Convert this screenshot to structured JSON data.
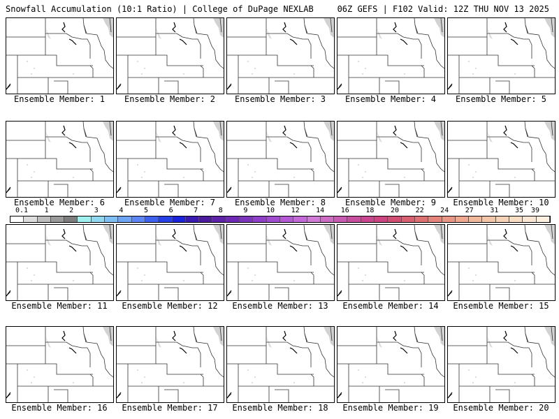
{
  "header": {
    "left": "Snowfall Accumulation (10:1 Ratio) | College of DuPage NEXLAB",
    "right": "06Z GEFS | F102 Valid: 12Z THU NOV 13 2025"
  },
  "panels": [
    {
      "label": "Ensemble Member: 1"
    },
    {
      "label": "Ensemble Member: 2"
    },
    {
      "label": "Ensemble Member: 3"
    },
    {
      "label": "Ensemble Member: 4"
    },
    {
      "label": "Ensemble Member: 5"
    },
    {
      "label": "Ensemble Member: 6"
    },
    {
      "label": "Ensemble Member: 7"
    },
    {
      "label": "Ensemble Member: 8"
    },
    {
      "label": "Ensemble Member: 9"
    },
    {
      "label": "Ensemble Member: 10"
    },
    {
      "label": "Ensemble Member: 11"
    },
    {
      "label": "Ensemble Member: 12"
    },
    {
      "label": "Ensemble Member: 13"
    },
    {
      "label": "Ensemble Member: 14"
    },
    {
      "label": "Ensemble Member: 15"
    },
    {
      "label": "Ensemble Member: 16"
    },
    {
      "label": "Ensemble Member: 17"
    },
    {
      "label": "Ensemble Member: 18"
    },
    {
      "label": "Ensemble Member: 19"
    },
    {
      "label": "Ensemble Member: 20"
    }
  ],
  "colorbar": {
    "labels": [
      "0.1",
      "1",
      "2",
      "3",
      "4",
      "5",
      "6",
      "7",
      "8",
      "9",
      "10",
      "12",
      "14",
      "16",
      "18",
      "20",
      "22",
      "24",
      "27",
      "31",
      "35",
      "39"
    ],
    "colors": [
      "#ffffff",
      "#dcdcdc",
      "#bdbdbd",
      "#9a9a9a",
      "#7d7d7d",
      "#9ff0ee",
      "#8fd8f0",
      "#7ec0f2",
      "#6ea4f4",
      "#5b86f4",
      "#3f62ee",
      "#2440e6",
      "#1a22dc",
      "#3a1ab0",
      "#4d1c9e",
      "#5d22a8",
      "#6e2ab4",
      "#7f34c0",
      "#9040c8",
      "#a24cd0",
      "#b45ad6",
      "#c46ad8",
      "#d07cd6",
      "#cc6cc4",
      "#c85cb2",
      "#c84ea0",
      "#ca468e",
      "#cc4480",
      "#d24e74",
      "#d86070",
      "#de7272",
      "#e4847a",
      "#ea9684",
      "#eea890",
      "#f2b89c",
      "#f4c6a8",
      "#f6d2b6",
      "#f8dcc4",
      "#fae6d2",
      "#fcefe0"
    ]
  }
}
